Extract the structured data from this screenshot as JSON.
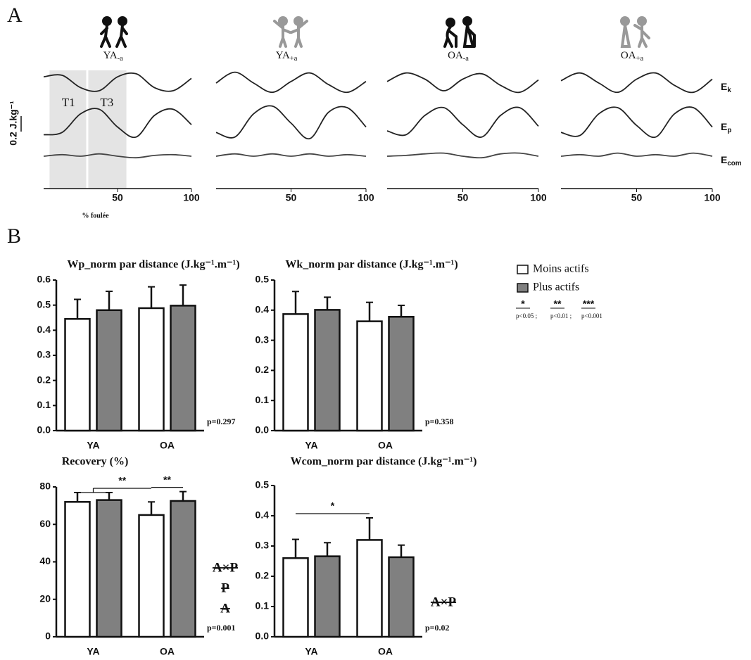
{
  "panel_labels": [
    "A",
    "B"
  ],
  "chart_data": [
    {
      "type": "line",
      "title": "YA",
      "title_subscript": "-a",
      "xlim": [
        0,
        100
      ],
      "xticks": [
        50,
        100
      ],
      "x_label": "% foulée",
      "scale_bar": {
        "value": 0.2,
        "label": "0.2 J.kg⁻¹"
      },
      "regions": [
        {
          "label": "T1",
          "x": [
            4,
            29.5
          ]
        },
        {
          "label": "T3",
          "x": [
            29.5,
            56
          ]
        }
      ],
      "x": [
        0,
        12.5,
        25,
        37.5,
        50,
        62.5,
        75,
        87.5,
        100
      ],
      "series": [
        {
          "color": "#222222",
          "values": [
            0.08,
            0.1,
            -0.06,
            -0.1,
            0.08,
            0.12,
            -0.06,
            -0.1,
            0.06
          ]
        },
        {
          "color": "#222222",
          "values": [
            -0.15,
            -0.12,
            0.12,
            0.18,
            -0.05,
            -0.18,
            0.1,
            0.18,
            -0.02
          ]
        },
        {
          "color": "#444444",
          "values": [
            0.0,
            0.02,
            0.0,
            0.03,
            0.0,
            -0.02,
            0.01,
            0.02,
            0.0
          ]
        }
      ]
    },
    {
      "type": "line",
      "title": "YA",
      "title_subscript": "+a",
      "xlim": [
        0,
        100
      ],
      "xticks": [
        50,
        100
      ],
      "x": [
        0,
        12.5,
        25,
        37.5,
        50,
        62.5,
        75,
        87.5,
        100
      ],
      "series": [
        {
          "color": "#222222",
          "values": [
            0.0,
            0.14,
            0.0,
            -0.12,
            0.02,
            0.13,
            -0.02,
            -0.12,
            0.02
          ]
        },
        {
          "color": "#222222",
          "values": [
            -0.12,
            -0.18,
            0.12,
            0.22,
            0.0,
            -0.2,
            0.14,
            0.2,
            -0.05
          ]
        },
        {
          "color": "#444444",
          "values": [
            0.0,
            0.03,
            0.0,
            0.03,
            0.0,
            0.03,
            0.0,
            0.02,
            0.0
          ]
        }
      ]
    },
    {
      "type": "line",
      "title": "OA",
      "title_subscript": "-a",
      "xlim": [
        0,
        100
      ],
      "xticks": [
        50,
        100
      ],
      "x": [
        0,
        12.5,
        25,
        37.5,
        50,
        62.5,
        75,
        87.5,
        100
      ],
      "series": [
        {
          "color": "#222222",
          "values": [
            0.02,
            0.13,
            0.05,
            -0.1,
            0.05,
            0.12,
            -0.03,
            -0.12,
            0.04
          ]
        },
        {
          "color": "#222222",
          "values": [
            -0.1,
            -0.15,
            0.1,
            0.2,
            -0.02,
            -0.18,
            0.1,
            0.2,
            -0.04
          ]
        },
        {
          "color": "#444444",
          "values": [
            0.0,
            0.01,
            0.03,
            0.04,
            0.0,
            -0.02,
            0.03,
            0.04,
            0.0
          ]
        }
      ]
    },
    {
      "type": "line",
      "title": "OA",
      "title_subscript": "+a",
      "xlim": [
        0,
        100
      ],
      "xticks": [
        50,
        100
      ],
      "x": [
        0,
        12.5,
        25,
        37.5,
        50,
        62.5,
        75,
        87.5,
        100
      ],
      "series": [
        {
          "name": "E",
          "subscript": "k",
          "color": "#222222",
          "values": [
            0.03,
            0.13,
            0.0,
            -0.12,
            0.05,
            0.13,
            -0.03,
            -0.12,
            0.05
          ]
        },
        {
          "name": "E",
          "subscript": "p",
          "color": "#222222",
          "values": [
            -0.12,
            -0.16,
            0.12,
            0.2,
            -0.03,
            -0.18,
            0.12,
            0.2,
            -0.05
          ]
        },
        {
          "name": "E",
          "subscript": "com",
          "color": "#444444",
          "values": [
            0.0,
            0.02,
            0.0,
            0.04,
            0.0,
            0.02,
            0.0,
            0.04,
            0.0
          ]
        }
      ]
    },
    {
      "type": "bar",
      "title": "Wp_norm  par distance (J.kg⁻¹.m⁻¹)",
      "categories": [
        "YA",
        "OA"
      ],
      "ylim": [
        0,
        0.6
      ],
      "yticks": [
        {
          "value": 0,
          "label": "0.0"
        },
        0.1,
        0.2,
        0.3,
        0.4,
        0.5,
        0.6
      ],
      "series": [
        {
          "name": "Moins actifs",
          "color": "#ffffff",
          "values": [
            0.445,
            0.488
          ],
          "errors": [
            0.078,
            0.085
          ]
        },
        {
          "name": "Plus actifs",
          "color": "#808080",
          "values": [
            0.48,
            0.498
          ],
          "errors": [
            0.075,
            0.082
          ]
        }
      ],
      "p_label": "p=0.297"
    },
    {
      "type": "bar",
      "title": "Wk_norm  par distance (J.kg⁻¹.m⁻¹)",
      "categories": [
        "YA",
        "OA"
      ],
      "ylim": [
        0,
        0.5
      ],
      "yticks": [
        {
          "value": 0,
          "label": "0.0"
        },
        0.1,
        0.2,
        0.3,
        0.4,
        0.5
      ],
      "series": [
        {
          "color": "#ffffff",
          "values": [
            0.387,
            0.363
          ],
          "errors": [
            0.075,
            0.063
          ]
        },
        {
          "color": "#808080",
          "values": [
            0.401,
            0.378
          ],
          "errors": [
            0.042,
            0.038
          ]
        }
      ],
      "p_label": "p=0.358"
    },
    {
      "type": "bar",
      "title": "Recovery (%)",
      "categories": [
        "YA",
        "OA"
      ],
      "ylim": [
        0,
        80
      ],
      "yticks": [
        0,
        20,
        40,
        60,
        80
      ],
      "series": [
        {
          "color": "#ffffff",
          "values": [
            72,
            65
          ],
          "errors": [
            5,
            7
          ]
        },
        {
          "color": "#808080",
          "values": [
            73,
            72.5
          ],
          "errors": [
            4,
            5
          ]
        }
      ],
      "comparisons": [
        {
          "label": "**",
          "from": [
            [
              0,
              0
            ],
            [
              0,
              1
            ]
          ],
          "to": [
            [
              1,
              0
            ]
          ]
        },
        {
          "label": "**",
          "from": [
            [
              1,
              0
            ]
          ],
          "to": [
            [
              1,
              1
            ]
          ]
        }
      ],
      "annotations": [
        "A×P",
        "P",
        "A"
      ],
      "p_label": "p=0.001"
    },
    {
      "type": "bar",
      "title": "Wcom_norm par distance (J.kg⁻¹.m⁻¹)",
      "categories": [
        "YA",
        "OA"
      ],
      "ylim": [
        0,
        0.5
      ],
      "yticks": [
        {
          "value": 0,
          "label": "0.0"
        },
        0.1,
        0.2,
        0.3,
        0.4,
        0.5
      ],
      "series": [
        {
          "color": "#ffffff",
          "values": [
            0.26,
            0.32
          ],
          "errors": [
            0.062,
            0.073
          ]
        },
        {
          "color": "#808080",
          "values": [
            0.266,
            0.263
          ],
          "errors": [
            0.045,
            0.04
          ]
        }
      ],
      "comparisons": [
        {
          "label": "*",
          "from": [
            [
              0,
              0
            ]
          ],
          "to": [
            [
              1,
              0
            ]
          ]
        }
      ],
      "annotations": [
        "A×P"
      ],
      "p_label": "p=0.02"
    }
  ],
  "significance_key": [
    {
      "symbol": "*",
      "label": "p<0.05 ;"
    },
    {
      "symbol": "**",
      "label": "p<0.01 ;"
    },
    {
      "symbol": "***",
      "label": "p<0.001"
    }
  ]
}
